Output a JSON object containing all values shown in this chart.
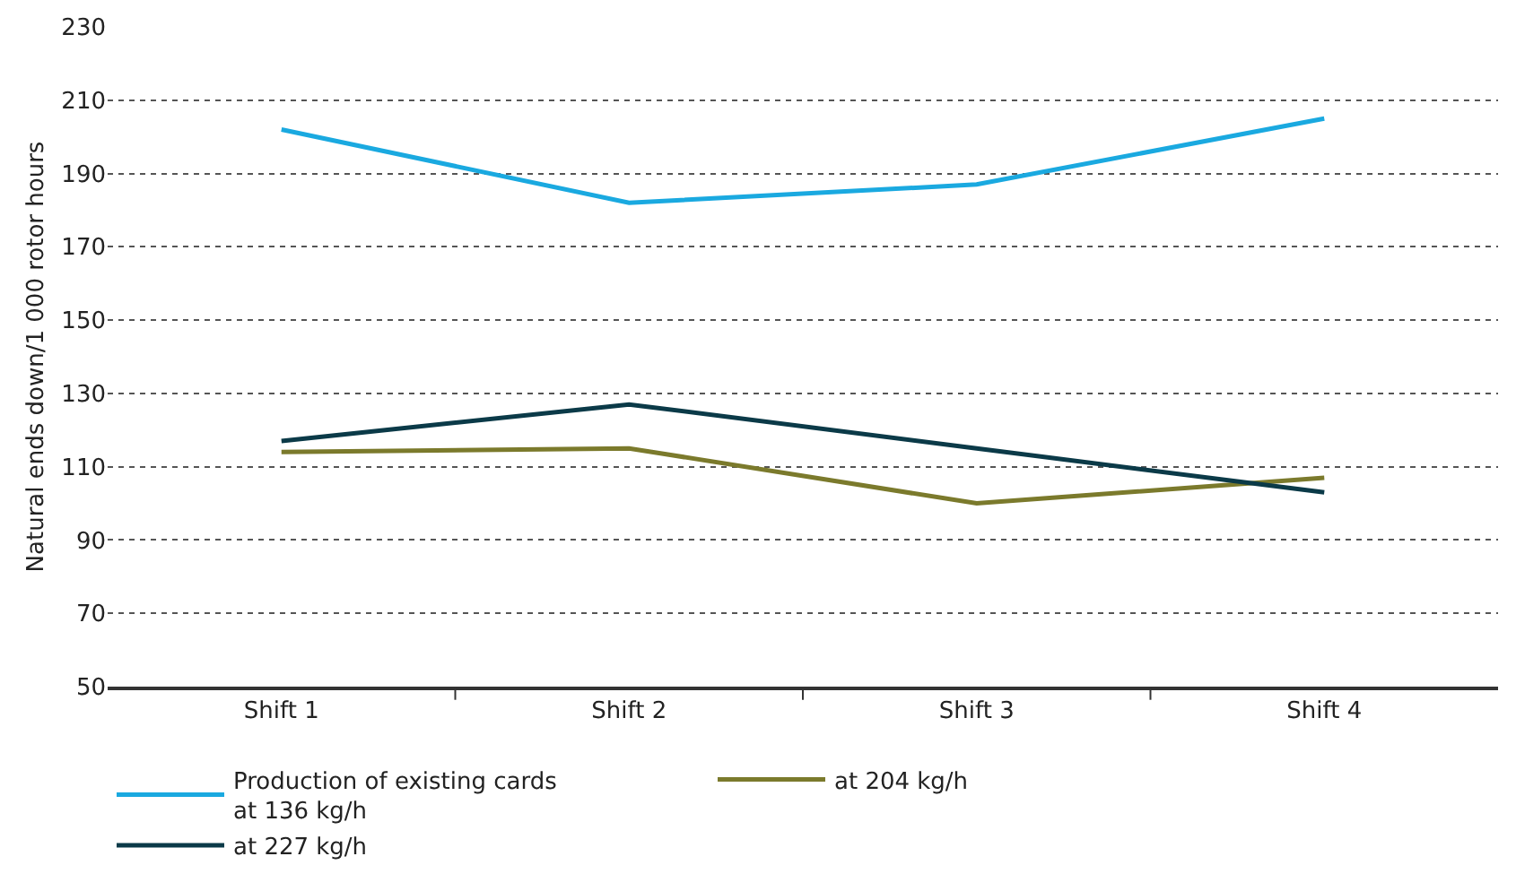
{
  "chart_data": {
    "type": "line",
    "ylabel": "Natural ends down/1 000 rotor hours",
    "categories": [
      "Shift 1",
      "Shift 2",
      "Shift 3",
      "Shift 4"
    ],
    "series": [
      {
        "name": "Production of existing cards\nat 136 kg/h",
        "color": "#1aa9e0",
        "values": [
          202,
          182,
          187,
          205
        ]
      },
      {
        "name": "at 204 kg/h",
        "color": "#7b7a2c",
        "values": [
          114,
          115,
          100,
          107
        ]
      },
      {
        "name": "at 227 kg/h",
        "color": "#0b3a48",
        "values": [
          117,
          127,
          115,
          103
        ]
      }
    ],
    "ylim": [
      50,
      230
    ],
    "yticks": [
      50,
      70,
      90,
      110,
      130,
      150,
      170,
      190,
      210,
      230
    ],
    "grid": "y",
    "legend": "bottom",
    "marker": "none",
    "line_style": "solid"
  }
}
